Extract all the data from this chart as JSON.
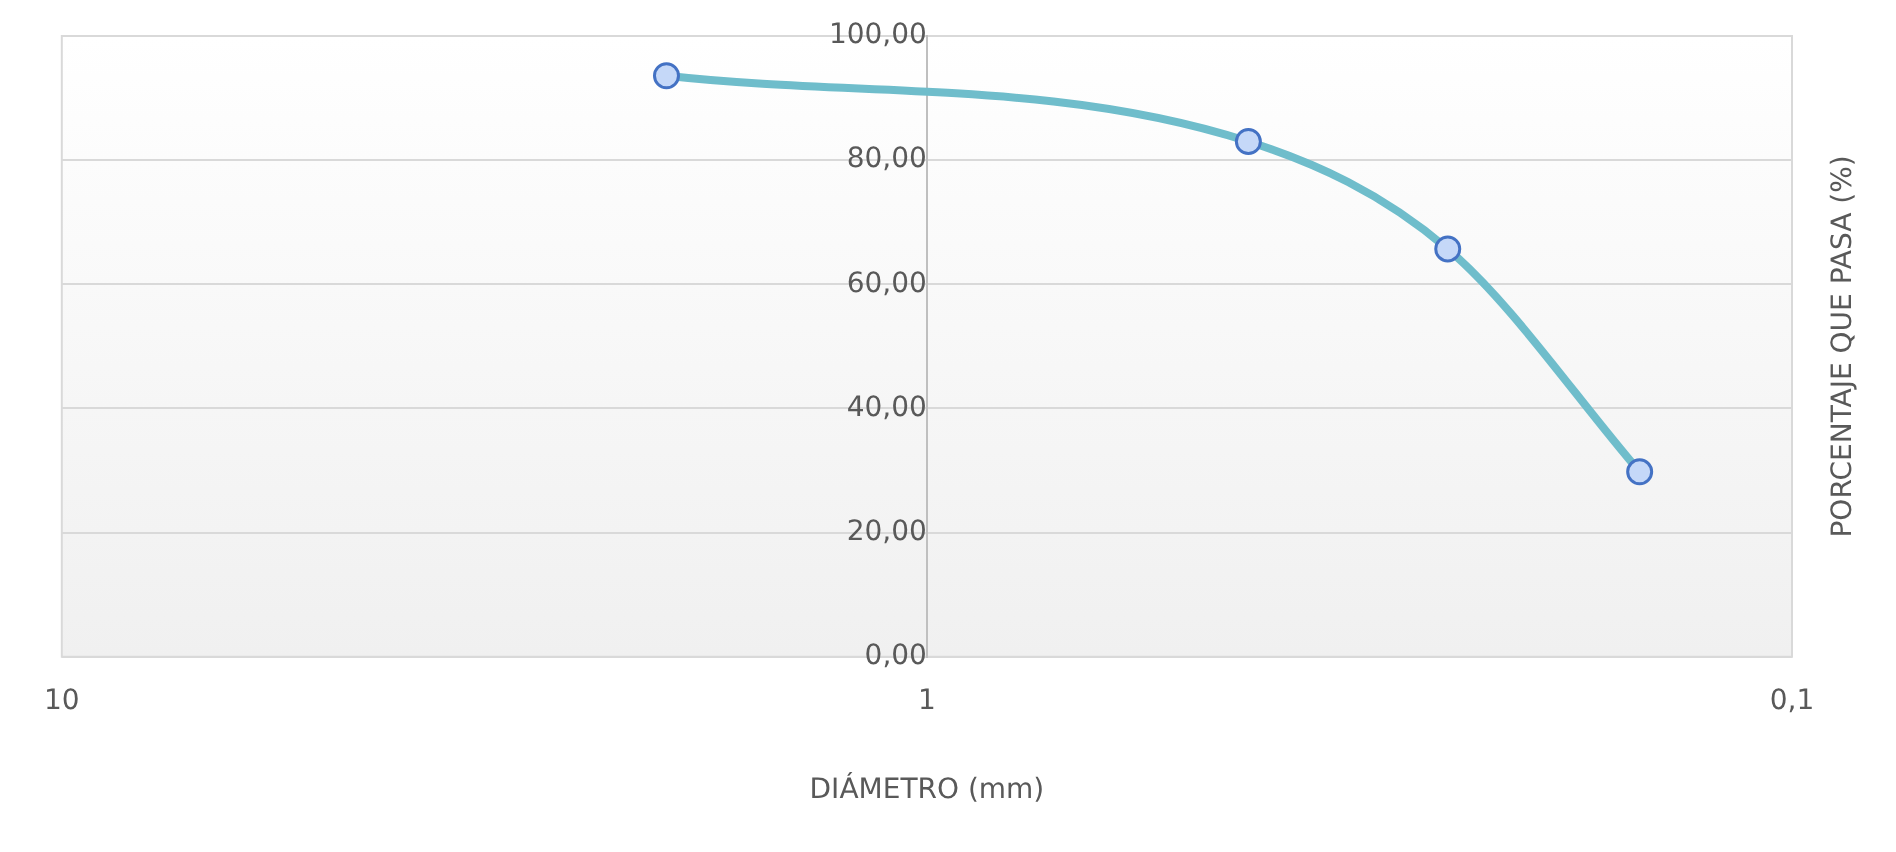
{
  "chart_data": {
    "type": "line",
    "xlabel": "DIÁMETRO (mm)",
    "ylabel": "PORCENTAJE QUE PASA (%)",
    "x": [
      2,
      0.425,
      0.25,
      0.15
    ],
    "series": [
      {
        "color": "#6fbdcb",
        "values": [
          93.6,
          83.0,
          65.7,
          29.8
        ]
      }
    ],
    "log": "x",
    "xlim": [
      10,
      0.1
    ],
    "xticks": [
      10,
      1,
      {
        "value": 0.1,
        "label": "0,1"
      }
    ],
    "ylim": [
      0,
      100
    ],
    "yticks": [
      {
        "value": 0,
        "label": "0,00"
      },
      {
        "value": 20,
        "label": "20,00"
      },
      {
        "value": 40,
        "label": "40,00"
      },
      {
        "value": 60,
        "label": "60,00"
      },
      {
        "value": 80,
        "label": "80,00"
      },
      {
        "value": 100,
        "label": "100,00"
      }
    ],
    "grid": "y",
    "marker": "circle",
    "line_style": "solid"
  }
}
